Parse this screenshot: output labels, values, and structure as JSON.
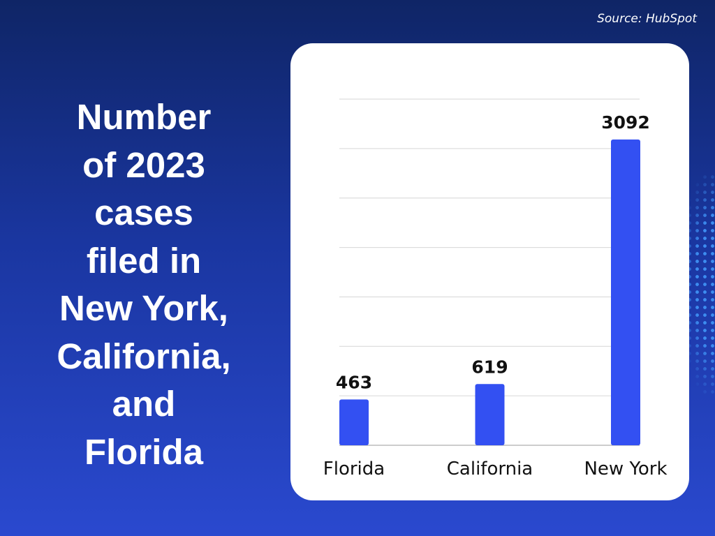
{
  "source": "Source: HubSpot",
  "title": "Number\nof 2023\ncases\nfiled in\nNew York,\nCalifornia,\nand\nFlorida",
  "colors": {
    "background_top": "#0f2566",
    "background_bottom": "#2a49cf",
    "bar": "#3350f2",
    "dots": "#3d8cf0"
  },
  "chart_data": {
    "type": "bar",
    "categories": [
      "Florida",
      "California",
      "New York"
    ],
    "values": [
      463,
      619,
      3092
    ],
    "ylim": [
      0,
      3500
    ],
    "grid": true,
    "y_tick_step": 500,
    "data_labels": [
      "463",
      "619",
      "3092"
    ]
  }
}
